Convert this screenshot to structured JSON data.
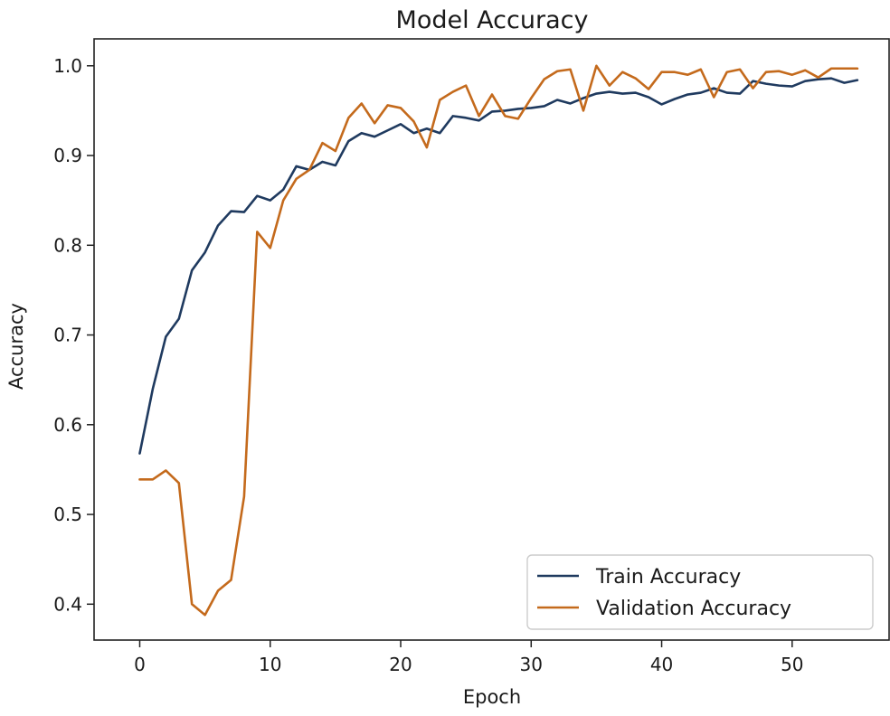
{
  "chart_data": {
    "type": "line",
    "title": "Model Accuracy",
    "xlabel": "Epoch",
    "ylabel": "Accuracy",
    "xlim": [
      -3.5,
      57.5
    ],
    "ylim": [
      0.36,
      1.03
    ],
    "xticks": [
      0,
      10,
      20,
      30,
      40,
      50
    ],
    "yticks": [
      0.4,
      0.5,
      0.6,
      0.7,
      0.8,
      0.9,
      1.0
    ],
    "ytick_labels": [
      "0.4",
      "0.5",
      "0.6",
      "0.7",
      "0.8",
      "0.9",
      "1.0"
    ],
    "grid": false,
    "legend_position": "bottom-right",
    "x": [
      0,
      1,
      2,
      3,
      4,
      5,
      6,
      7,
      8,
      9,
      10,
      11,
      12,
      13,
      14,
      15,
      16,
      17,
      18,
      19,
      20,
      21,
      22,
      23,
      24,
      25,
      26,
      27,
      28,
      29,
      30,
      31,
      32,
      33,
      34,
      35,
      36,
      37,
      38,
      39,
      40,
      41,
      42,
      43,
      44,
      45,
      46,
      47,
      48,
      49,
      50,
      51,
      52,
      53,
      54,
      55
    ],
    "series": [
      {
        "name": "Train Accuracy",
        "color": "#1f3a5f",
        "values": [
          0.568,
          0.64,
          0.698,
          0.718,
          0.772,
          0.792,
          0.822,
          0.838,
          0.837,
          0.855,
          0.85,
          0.862,
          0.888,
          0.884,
          0.893,
          0.889,
          0.916,
          0.925,
          0.921,
          0.928,
          0.935,
          0.925,
          0.93,
          0.925,
          0.944,
          0.942,
          0.939,
          0.949,
          0.95,
          0.952,
          0.953,
          0.955,
          0.962,
          0.958,
          0.964,
          0.969,
          0.971,
          0.969,
          0.97,
          0.965,
          0.957,
          0.963,
          0.968,
          0.97,
          0.975,
          0.97,
          0.969,
          0.983,
          0.98,
          0.978,
          0.977,
          0.983,
          0.985,
          0.986,
          0.981,
          0.984
        ]
      },
      {
        "name": "Validation Accuracy",
        "color": "#c46a1c",
        "values": [
          0.539,
          0.539,
          0.549,
          0.535,
          0.4,
          0.388,
          0.415,
          0.427,
          0.52,
          0.815,
          0.797,
          0.85,
          0.874,
          0.884,
          0.914,
          0.905,
          0.942,
          0.958,
          0.936,
          0.956,
          0.953,
          0.938,
          0.909,
          0.962,
          0.971,
          0.978,
          0.944,
          0.968,
          0.944,
          0.941,
          0.964,
          0.985,
          0.994,
          0.996,
          0.95,
          1.0,
          0.978,
          0.993,
          0.986,
          0.974,
          0.993,
          0.993,
          0.99,
          0.996,
          0.965,
          0.993,
          0.996,
          0.975,
          0.993,
          0.994,
          0.99,
          0.995,
          0.987,
          0.997,
          0.997,
          0.997
        ]
      }
    ]
  }
}
